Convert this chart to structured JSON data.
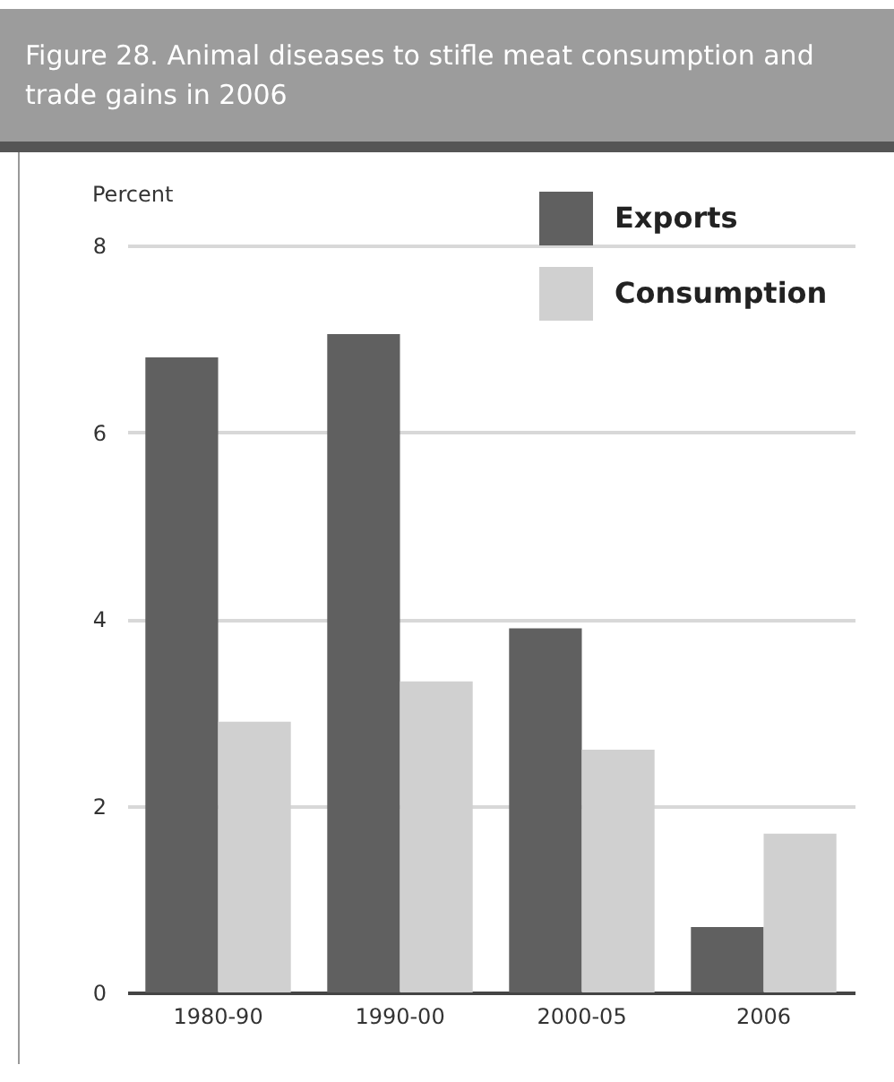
{
  "chart_data": {
    "type": "bar",
    "title": "Figure 28. Animal diseases to stifle meat consumption and trade gains in 2006",
    "ylabel": "Percent",
    "categories": [
      "1980-90",
      "1990-00",
      "2000-05",
      "2006"
    ],
    "series": [
      {
        "name": "Exports",
        "color": "#606060",
        "values": [
          6.8,
          7.05,
          3.9,
          0.7
        ]
      },
      {
        "name": "Consumption",
        "color": "#d0d0d0",
        "values": [
          2.9,
          3.33,
          2.6,
          1.7
        ]
      }
    ],
    "ylim": [
      0,
      8
    ],
    "yticks": [
      0,
      2,
      4,
      6,
      8
    ],
    "grid": "y",
    "legend": "top right"
  }
}
